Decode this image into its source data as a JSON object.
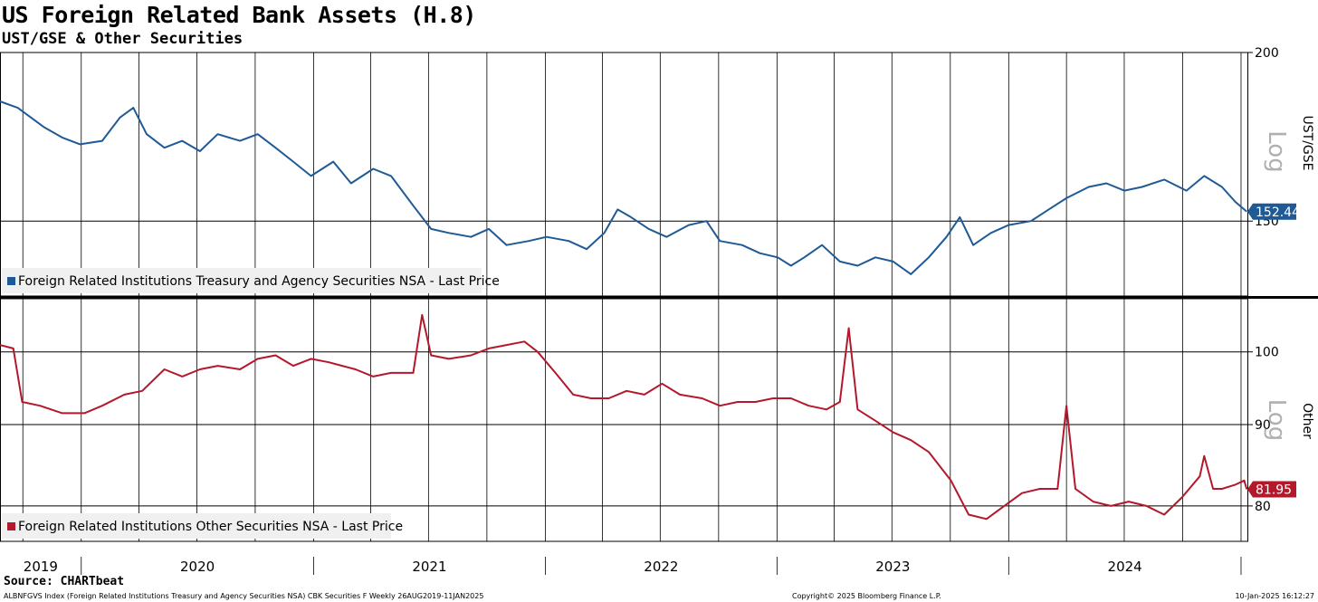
{
  "title": "US Foreign Related Bank Assets (H.8)",
  "subtitle": "UST/GSE & Other Securities",
  "source": "Source: CHARTbeat",
  "footer": {
    "left": "ALBNFGVS Index (Foreign Related Institutions Treasury and Agency Securities NSA) CBK Securities F  Weekly 26AUG2019-11JAN2025",
    "middle": "Copyright© 2025 Bloomberg Finance L.P.",
    "right": "10-Jan-2025 16:12:27"
  },
  "colors": {
    "ust": "#1f5a96",
    "other": "#b3182b",
    "grid": "#000000"
  },
  "chart_data": [
    {
      "type": "line",
      "panel": "top",
      "axis_label": "UST/GSE",
      "scale_label": "Log",
      "scale": "log",
      "ylim": [
        132,
        200
      ],
      "yticks": [
        150,
        200
      ],
      "last_value": "152.44",
      "legend": "Foreign Related Institutions Treasury and Agency Securities NSA - Last Price",
      "x_start": "2019-08-26",
      "x_end": "2025-01-11",
      "series": [
        {
          "name": "Foreign Related Institutions Treasury and Agency Securities NSA - Last Price",
          "points": [
            [
              "2019-08-26",
              184
            ],
            [
              "2019-09-23",
              182
            ],
            [
              "2019-11-04",
              176
            ],
            [
              "2019-12-02",
              173
            ],
            [
              "2019-12-30",
              171
            ],
            [
              "2020-02-03",
              172
            ],
            [
              "2020-03-02",
              179
            ],
            [
              "2020-03-23",
              182
            ],
            [
              "2020-04-13",
              174
            ],
            [
              "2020-05-11",
              170
            ],
            [
              "2020-06-08",
              172
            ],
            [
              "2020-07-06",
              169
            ],
            [
              "2020-08-03",
              174
            ],
            [
              "2020-09-07",
              172
            ],
            [
              "2020-10-05",
              174
            ],
            [
              "2020-11-02",
              170
            ],
            [
              "2020-11-30",
              166
            ],
            [
              "2020-12-28",
              162
            ],
            [
              "2021-02-01",
              166
            ],
            [
              "2021-03-01",
              160
            ],
            [
              "2021-04-05",
              164
            ],
            [
              "2021-05-03",
              162
            ],
            [
              "2021-06-07",
              154
            ],
            [
              "2021-07-05",
              148
            ],
            [
              "2021-08-02",
              147
            ],
            [
              "2021-09-06",
              146
            ],
            [
              "2021-10-04",
              148
            ],
            [
              "2021-11-01",
              144
            ],
            [
              "2021-12-06",
              145
            ],
            [
              "2022-01-03",
              146
            ],
            [
              "2022-02-07",
              145
            ],
            [
              "2022-03-07",
              143
            ],
            [
              "2022-04-04",
              147
            ],
            [
              "2022-04-25",
              153
            ],
            [
              "2022-05-16",
              151
            ],
            [
              "2022-06-13",
              148
            ],
            [
              "2022-07-11",
              146
            ],
            [
              "2022-08-15",
              149
            ],
            [
              "2022-09-12",
              150
            ],
            [
              "2022-10-03",
              145
            ],
            [
              "2022-11-07",
              144
            ],
            [
              "2022-12-05",
              142
            ],
            [
              "2023-01-02",
              141
            ],
            [
              "2023-01-23",
              139
            ],
            [
              "2023-02-13",
              141
            ],
            [
              "2023-03-13",
              144
            ],
            [
              "2023-04-10",
              140
            ],
            [
              "2023-05-08",
              139
            ],
            [
              "2023-06-05",
              141
            ],
            [
              "2023-07-03",
              140
            ],
            [
              "2023-07-31",
              137
            ],
            [
              "2023-08-28",
              141
            ],
            [
              "2023-09-25",
              146
            ],
            [
              "2023-10-16",
              151
            ],
            [
              "2023-11-06",
              144
            ],
            [
              "2023-12-04",
              147
            ],
            [
              "2024-01-01",
              149
            ],
            [
              "2024-02-05",
              150
            ],
            [
              "2024-03-04",
              153
            ],
            [
              "2024-04-01",
              156
            ],
            [
              "2024-05-06",
              159
            ],
            [
              "2024-06-03",
              160
            ],
            [
              "2024-07-01",
              158
            ],
            [
              "2024-07-29",
              159
            ],
            [
              "2024-09-02",
              161
            ],
            [
              "2024-10-07",
              158
            ],
            [
              "2024-11-04",
              162
            ],
            [
              "2024-12-02",
              159
            ],
            [
              "2024-12-23",
              155
            ],
            [
              "2025-01-10",
              152.44
            ]
          ]
        }
      ]
    },
    {
      "type": "line",
      "panel": "bottom",
      "axis_label": "Other",
      "scale_label": "Log",
      "scale": "log",
      "ylim": [
        76,
        108
      ],
      "yticks": [
        80,
        90,
        100
      ],
      "last_value": "81.95",
      "legend": "Foreign Related Institutions Other Securities NSA - Last Price",
      "x_start": "2019-08-26",
      "x_end": "2025-01-11",
      "series": [
        {
          "name": "Foreign Related Institutions Other Securities NSA - Last Price",
          "points": [
            [
              "2019-08-26",
              101
            ],
            [
              "2019-09-16",
              100.5
            ],
            [
              "2019-09-30",
              93
            ],
            [
              "2019-10-28",
              92.5
            ],
            [
              "2019-12-02",
              91.5
            ],
            [
              "2020-01-06",
              91.5
            ],
            [
              "2020-02-03",
              92.5
            ],
            [
              "2020-03-09",
              94
            ],
            [
              "2020-04-06",
              94.5
            ],
            [
              "2020-05-11",
              97.5
            ],
            [
              "2020-06-08",
              96.5
            ],
            [
              "2020-07-06",
              97.5
            ],
            [
              "2020-08-03",
              98
            ],
            [
              "2020-09-07",
              97.5
            ],
            [
              "2020-10-05",
              99
            ],
            [
              "2020-11-02",
              99.5
            ],
            [
              "2020-11-30",
              98
            ],
            [
              "2020-12-28",
              99
            ],
            [
              "2021-01-25",
              98.5
            ],
            [
              "2021-02-15",
              98
            ],
            [
              "2021-03-08",
              97.5
            ],
            [
              "2021-04-05",
              96.5
            ],
            [
              "2021-05-03",
              97
            ],
            [
              "2021-06-07",
              97
            ],
            [
              "2021-06-21",
              105.5
            ],
            [
              "2021-07-05",
              99.5
            ],
            [
              "2021-08-02",
              99
            ],
            [
              "2021-09-06",
              99.5
            ],
            [
              "2021-10-04",
              100.5
            ],
            [
              "2021-11-01",
              101
            ],
            [
              "2021-11-29",
              101.5
            ],
            [
              "2021-12-20",
              100
            ],
            [
              "2022-01-17",
              97
            ],
            [
              "2022-02-14",
              94
            ],
            [
              "2022-03-14",
              93.5
            ],
            [
              "2022-04-11",
              93.5
            ],
            [
              "2022-05-09",
              94.5
            ],
            [
              "2022-06-06",
              94
            ],
            [
              "2022-07-04",
              95.5
            ],
            [
              "2022-08-01",
              94
            ],
            [
              "2022-09-05",
              93.5
            ],
            [
              "2022-10-03",
              92.5
            ],
            [
              "2022-10-31",
              93
            ],
            [
              "2022-11-28",
              93
            ],
            [
              "2022-12-26",
              93.5
            ],
            [
              "2023-01-23",
              93.5
            ],
            [
              "2023-02-20",
              92.5
            ],
            [
              "2023-03-20",
              92
            ],
            [
              "2023-04-10",
              93
            ],
            [
              "2023-04-24",
              103.5
            ],
            [
              "2023-05-08",
              92
            ],
            [
              "2023-06-05",
              90.5
            ],
            [
              "2023-07-03",
              89
            ],
            [
              "2023-07-31",
              88
            ],
            [
              "2023-08-28",
              86.5
            ],
            [
              "2023-10-02",
              83
            ],
            [
              "2023-10-30",
              79
            ],
            [
              "2023-11-27",
              78.5
            ],
            [
              "2023-12-25",
              80
            ],
            [
              "2024-01-22",
              81.5
            ],
            [
              "2024-02-19",
              82
            ],
            [
              "2024-03-18",
              82
            ],
            [
              "2024-04-01",
              92.5
            ],
            [
              "2024-04-15",
              82
            ],
            [
              "2024-05-13",
              80.5
            ],
            [
              "2024-06-10",
              80
            ],
            [
              "2024-07-08",
              80.5
            ],
            [
              "2024-08-05",
              80
            ],
            [
              "2024-09-02",
              79
            ],
            [
              "2024-09-30",
              81
            ],
            [
              "2024-10-28",
              83.5
            ],
            [
              "2024-11-04",
              86
            ],
            [
              "2024-11-18",
              82
            ],
            [
              "2024-12-02",
              82
            ],
            [
              "2024-12-23",
              82.5
            ],
            [
              "2025-01-06",
              83
            ],
            [
              "2025-01-10",
              81.95
            ]
          ]
        }
      ]
    }
  ],
  "x_axis": {
    "year_labels": [
      "2019",
      "2020",
      "2021",
      "2022",
      "2023",
      "2024"
    ]
  }
}
